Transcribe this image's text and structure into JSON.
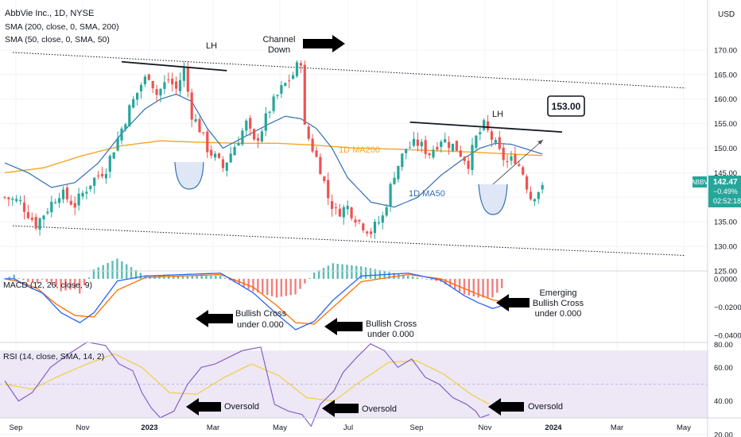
{
  "header": {
    "title": "AbbVie Inc., 1D, NYSE",
    "indicators": [
      "SMA (200, close, 0, SMA, 200)",
      "SMA (50, close, 0, SMA, 50)"
    ],
    "currency": "USD"
  },
  "price_badge": {
    "symbol": "ABBV",
    "price": "142.47",
    "change": "−0.49%",
    "countdown": "02:52:18"
  },
  "annotations": {
    "lh_left": "LH",
    "channel_line1": "Channel",
    "channel_line2": "Down",
    "lh_right": "LH",
    "target": "153.00",
    "ma200": "1D MA200",
    "ma50": "1D MA50",
    "macd_cross1_line1": "Bullish Cross",
    "macd_cross1_line2": "under 0.000",
    "macd_cross2_line1": "Bullish Cross",
    "macd_cross2_line2": "under 0.000",
    "macd_cross3_line1": "Emerging",
    "macd_cross3_line2": "Bullish Cross",
    "macd_cross3_line3": "under 0.000",
    "rsi_oversold1": "Oversold",
    "rsi_oversold2": "Oversold",
    "rsi_oversold3": "Oversold"
  },
  "colors": {
    "up": "#26a69a",
    "down": "#ef5350",
    "ma200": "#f5a623",
    "ma50": "#2f6fb5",
    "macd": "#2962ff",
    "signal": "#ff6d00",
    "rsi": "#7e57c2",
    "rsi_ma": "#f0d040",
    "rsi_band": "#ede7f6",
    "badge": "#26a69a"
  },
  "chart_data": [
    {
      "type": "candlestick",
      "title": "AbbVie Inc., 1D, NYSE",
      "ylabel": "USD",
      "ylim": [
        125,
        175
      ],
      "y_ticks": [
        125,
        130,
        135,
        140,
        145,
        150,
        155,
        160,
        165,
        170
      ],
      "x_ticks": [
        "Sep",
        "Nov",
        "2023",
        "Mar",
        "May",
        "Jul",
        "Sep",
        "Nov",
        "2024",
        "Mar",
        "May"
      ],
      "price_path": [
        [
          0,
          140
        ],
        [
          4,
          139
        ],
        [
          8,
          134.5
        ],
        [
          14,
          141
        ],
        [
          18,
          138.5
        ],
        [
          22,
          143
        ],
        [
          26,
          146
        ],
        [
          29,
          152
        ],
        [
          32,
          158
        ],
        [
          35,
          163
        ],
        [
          37,
          165
        ],
        [
          39,
          161
        ],
        [
          42,
          164
        ],
        [
          44,
          162
        ],
        [
          46,
          166
        ],
        [
          48,
          157
        ],
        [
          50,
          154
        ],
        [
          52,
          150
        ],
        [
          54,
          148
        ],
        [
          56,
          146
        ],
        [
          58,
          149
        ],
        [
          60,
          152
        ],
        [
          62,
          155
        ],
        [
          64,
          151
        ],
        [
          66,
          154
        ],
        [
          68,
          158
        ],
        [
          71,
          162
        ],
        [
          74,
          165
        ],
        [
          76,
          168
        ],
        [
          77,
          154
        ],
        [
          79,
          150
        ],
        [
          81,
          146
        ],
        [
          83,
          140
        ],
        [
          85,
          137
        ],
        [
          88,
          138
        ],
        [
          91,
          135
        ],
        [
          94,
          133
        ],
        [
          97,
          136
        ],
        [
          100,
          145
        ],
        [
          103,
          150
        ],
        [
          106,
          151
        ],
        [
          109,
          149
        ],
        [
          112,
          152
        ],
        [
          116,
          150
        ],
        [
          119,
          147
        ],
        [
          121,
          152
        ],
        [
          123,
          154.5
        ],
        [
          125,
          152
        ],
        [
          127,
          149
        ],
        [
          129,
          147
        ],
        [
          131,
          148
        ],
        [
          133,
          145
        ],
        [
          135,
          140
        ],
        [
          137,
          141.5
        ],
        [
          138,
          142.47
        ]
      ],
      "series": [
        {
          "name": "1D MA200",
          "values": [
            [
              0,
              145
            ],
            [
              10,
              146
            ],
            [
              20,
              148.5
            ],
            [
              30,
              150.5
            ],
            [
              40,
              151.5
            ],
            [
              50,
              151.2
            ],
            [
              60,
              151
            ],
            [
              70,
              151
            ],
            [
              80,
              150.6
            ],
            [
              90,
              150
            ],
            [
              100,
              149.8
            ],
            [
              110,
              149.5
            ],
            [
              120,
              149.2
            ],
            [
              130,
              148.8
            ],
            [
              138,
              148.5
            ]
          ]
        },
        {
          "name": "1D MA50",
          "values": [
            [
              0,
              147
            ],
            [
              6,
              145
            ],
            [
              12,
              142
            ],
            [
              18,
              143
            ],
            [
              24,
              147
            ],
            [
              30,
              153
            ],
            [
              36,
              158
            ],
            [
              40,
              160
            ],
            [
              44,
              161
            ],
            [
              48,
              159.5
            ],
            [
              52,
              154
            ],
            [
              56,
              150
            ],
            [
              62,
              152.5
            ],
            [
              68,
              155
            ],
            [
              72,
              156.5
            ],
            [
              76,
              156
            ],
            [
              80,
              154
            ],
            [
              84,
              150
            ],
            [
              88,
              144
            ],
            [
              94,
              139
            ],
            [
              100,
              138
            ],
            [
              106,
              140
            ],
            [
              112,
              144.5
            ],
            [
              118,
              148
            ],
            [
              122,
              150
            ],
            [
              126,
              151
            ],
            [
              130,
              150.8
            ],
            [
              134,
              149.8
            ],
            [
              138,
              148.8
            ]
          ]
        }
      ],
      "channel": {
        "upper": [
          [
            0,
            169.5
          ],
          [
            138,
            161.6
          ]
        ],
        "lower": [
          [
            0,
            134.2
          ],
          [
            138,
            127.5
          ]
        ]
      },
      "lh_lines": [
        {
          "from": [
            30,
            167.6
          ],
          "to": [
            57,
            165.8
          ]
        },
        {
          "from": [
            104,
            155.3
          ],
          "to": [
            140,
            153.3
          ]
        }
      ],
      "target": 153.0,
      "last_price": 142.47
    },
    {
      "type": "line",
      "title": "MACD (12, 26, close, 9)",
      "ylim": [
        -0.045,
        0.005
      ],
      "y_ticks": [
        0.0,
        -0.02,
        -0.04
      ],
      "y_tick_labels": [
        "0.0000",
        "−0.0200",
        "−0.0400"
      ],
      "series": [
        {
          "name": "MACD",
          "values": [
            [
              0,
              0.0
            ],
            [
              2,
              0.0
            ],
            [
              5,
              -0.0055
            ],
            [
              8,
              -0.01
            ],
            [
              12,
              -0.024
            ],
            [
              16,
              -0.031
            ],
            [
              19,
              -0.024
            ],
            [
              24,
              -0.0015
            ],
            [
              30,
              0.002
            ],
            [
              46,
              0.004
            ],
            [
              53,
              -0.01
            ],
            [
              58,
              -0.025
            ],
            [
              62,
              -0.036
            ],
            [
              66,
              -0.03
            ],
            [
              70,
              -0.015
            ],
            [
              76,
              0.002
            ],
            [
              86,
              0.004
            ],
            [
              93,
              -0.001
            ],
            [
              98,
              -0.012
            ],
            [
              101,
              -0.017
            ],
            [
              104,
              -0.021
            ],
            [
              106,
              -0.019
            ]
          ]
        },
        {
          "name": "Signal",
          "values": [
            [
              0,
              0.0
            ],
            [
              3,
              -0.002
            ],
            [
              7,
              -0.007
            ],
            [
              11,
              -0.018
            ],
            [
              15,
              -0.026
            ],
            [
              19,
              -0.027
            ],
            [
              24,
              -0.008
            ],
            [
              30,
              0.001
            ],
            [
              46,
              0.003
            ],
            [
              53,
              -0.006
            ],
            [
              58,
              -0.019
            ],
            [
              62,
              -0.031
            ],
            [
              66,
              -0.032
            ],
            [
              70,
              -0.02
            ],
            [
              76,
              -0.002
            ],
            [
              86,
              0.003
            ],
            [
              93,
              0.0
            ],
            [
              98,
              -0.007
            ],
            [
              101,
              -0.011
            ],
            [
              104,
              -0.015
            ],
            [
              106,
              -0.016
            ]
          ]
        }
      ]
    },
    {
      "type": "line",
      "title": "RSI (14, close, SMA, 14, 2)",
      "ylim": [
        20,
        80
      ],
      "y_ticks": [
        20,
        40,
        60,
        80
      ],
      "band": [
        30,
        70
      ],
      "series": [
        {
          "name": "RSI",
          "values": [
            [
              0,
              52
            ],
            [
              3,
              40
            ],
            [
              6,
              45
            ],
            [
              10,
              60
            ],
            [
              14,
              68
            ],
            [
              18,
              75
            ],
            [
              22,
              73
            ],
            [
              25,
              62
            ],
            [
              28,
              58
            ],
            [
              30,
              45
            ],
            [
              32,
              36
            ],
            [
              34,
              30
            ],
            [
              37,
              34
            ],
            [
              40,
              50
            ],
            [
              43,
              60
            ],
            [
              46,
              62
            ],
            [
              49,
              66
            ],
            [
              52,
              70
            ],
            [
              56,
              72
            ],
            [
              59,
              38
            ],
            [
              62,
              34
            ],
            [
              65,
              32
            ],
            [
              67,
              25
            ],
            [
              69,
              38
            ],
            [
              72,
              46
            ],
            [
              74,
              57
            ],
            [
              77,
              66
            ],
            [
              80,
              74
            ],
            [
              83,
              70
            ],
            [
              86,
              60
            ],
            [
              89,
              65
            ],
            [
              92,
              54
            ],
            [
              95,
              50
            ],
            [
              98,
              42
            ],
            [
              101,
              38
            ],
            [
              103,
              34
            ],
            [
              104,
              30
            ],
            [
              106,
              32
            ]
          ]
        },
        {
          "name": "RSI-based MA",
          "values": [
            [
              0,
              50
            ],
            [
              6,
              47
            ],
            [
              12,
              55
            ],
            [
              18,
              62
            ],
            [
              24,
              68
            ],
            [
              30,
              60
            ],
            [
              36,
              45
            ],
            [
              42,
              44
            ],
            [
              48,
              54
            ],
            [
              54,
              62
            ],
            [
              60,
              55
            ],
            [
              66,
              42
            ],
            [
              72,
              40
            ],
            [
              78,
              52
            ],
            [
              84,
              63
            ],
            [
              90,
              64
            ],
            [
              96,
              56
            ],
            [
              102,
              44
            ],
            [
              106,
              38
            ]
          ]
        }
      ]
    }
  ]
}
